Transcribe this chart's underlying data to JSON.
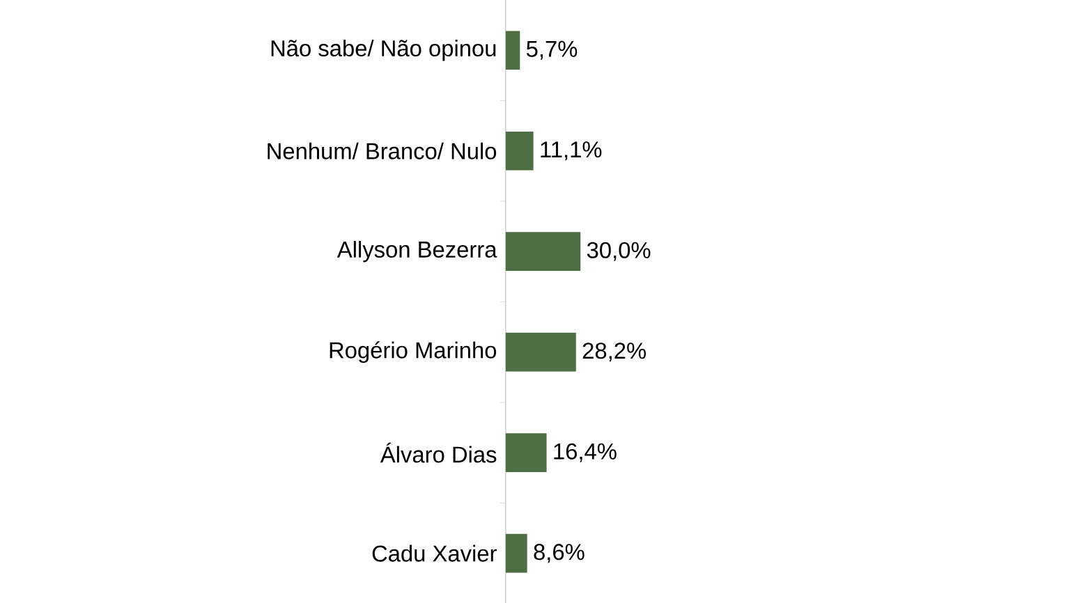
{
  "chart_data": {
    "type": "bar",
    "orientation": "horizontal",
    "categories": [
      "Não sabe/ Não opinou",
      "Nenhum/ Branco/ Nulo",
      "Allyson Bezerra",
      "Rogério Marinho",
      "Álvaro Dias",
      "Cadu Xavier"
    ],
    "values": [
      5.7,
      11.1,
      30.0,
      28.2,
      16.4,
      8.6
    ],
    "value_labels": [
      "5,7%",
      "11,1%",
      "30,0%",
      "28,2%",
      "16,4%",
      "8,6%"
    ],
    "color": "#4e6e44"
  }
}
